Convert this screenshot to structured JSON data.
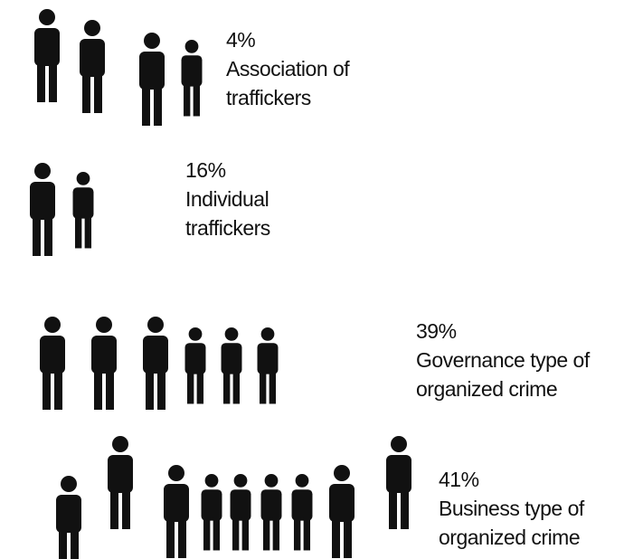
{
  "chart_data": {
    "type": "bar",
    "orientation": "horizontal",
    "categories": [
      "Association of traffickers",
      "Individual traffickers",
      "Governance type of organized crime",
      "Business type of organized crime"
    ],
    "values": [
      4,
      16,
      39,
      41
    ],
    "value_labels": [
      "4%",
      "16%",
      "39%",
      "41%"
    ],
    "colors": [
      "#c9b66c",
      "#2f8b87",
      "#c9977a",
      "#5b74a1"
    ]
  }
}
